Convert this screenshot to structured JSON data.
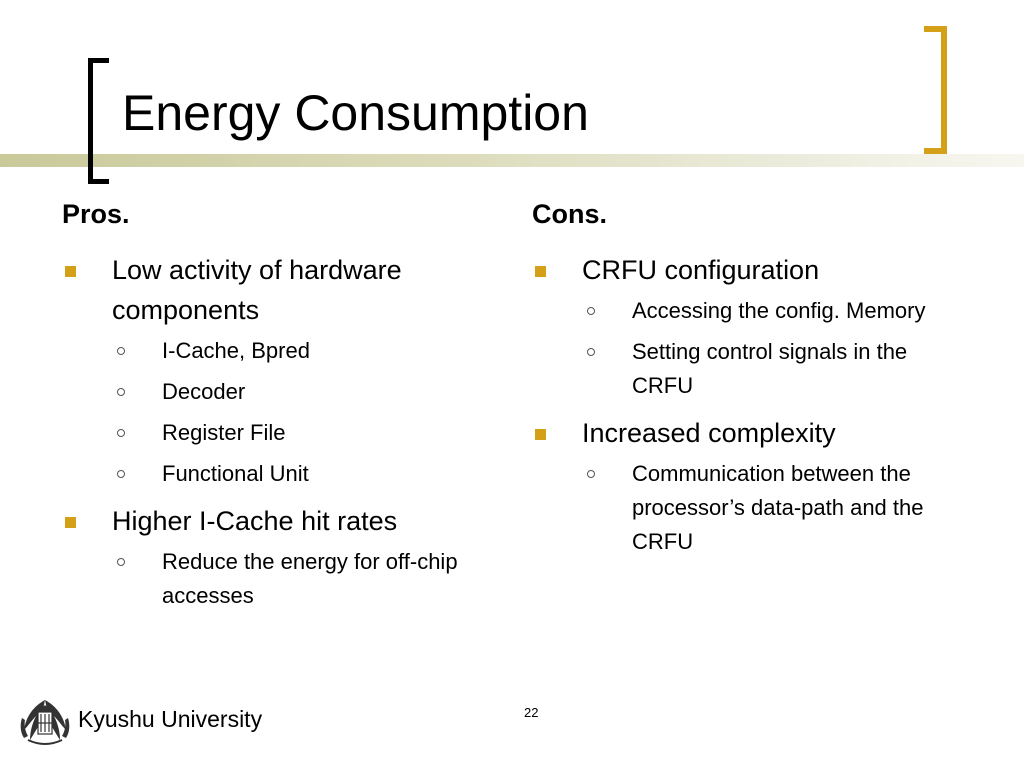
{
  "slide": {
    "title": "Energy Consumption",
    "page_number": "22",
    "footer": "Kyushu University"
  },
  "pros": {
    "heading": "Pros.",
    "items": [
      {
        "text": "Low activity of hardware components",
        "sub": [
          "I-Cache, Bpred",
          "Decoder",
          "Register File",
          "Functional Unit"
        ]
      },
      {
        "text": "Higher I-Cache hit rates",
        "sub": [
          "Reduce the energy for off-chip accesses"
        ]
      }
    ]
  },
  "cons": {
    "heading": "Cons.",
    "items": [
      {
        "text": "CRFU configuration",
        "sub": [
          "Accessing the config. Memory",
          "Setting control signals in the CRFU"
        ]
      },
      {
        "text": "Increased complexity",
        "sub": [
          "Communication between the processor’s data-path and the CRFU"
        ]
      }
    ]
  },
  "colors": {
    "accent_gold": "#d4a017",
    "title_band": "#c9c99a",
    "text": "#000000"
  },
  "icons": {
    "bullet_level1": "square-bullet-icon",
    "bullet_level2": "circle-bullet-icon",
    "logo": "kyushu-university-logo-icon"
  }
}
